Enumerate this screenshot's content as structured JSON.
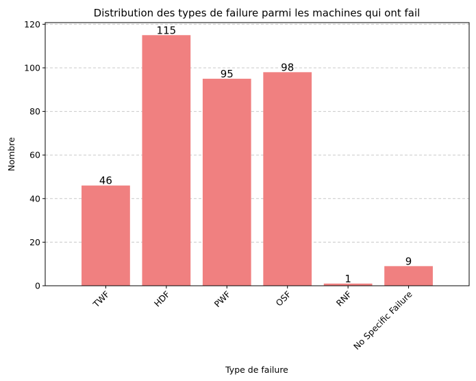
{
  "chart_data": {
    "type": "bar",
    "title": "Distribution des types de failure parmi les machines qui ont fail",
    "xlabel": "Type de failure",
    "ylabel": "Nombre",
    "categories": [
      "TWF",
      "HDF",
      "PWF",
      "OSF",
      "RNF",
      "No Specific Failure"
    ],
    "values": [
      46,
      115,
      95,
      98,
      1,
      9
    ],
    "data_labels": [
      "46",
      "115",
      "95",
      "98",
      "1",
      "9"
    ],
    "ylim": [
      0,
      120.75
    ],
    "yticks": [
      0,
      20,
      40,
      60,
      80,
      100,
      120
    ],
    "ytick_labels": [
      "0",
      "20",
      "40",
      "60",
      "80",
      "100",
      "120"
    ],
    "xtick_rotation": 45,
    "grid": "y-dashed",
    "bar_color": "#f08080",
    "grid_color": "#c8c8c8"
  }
}
